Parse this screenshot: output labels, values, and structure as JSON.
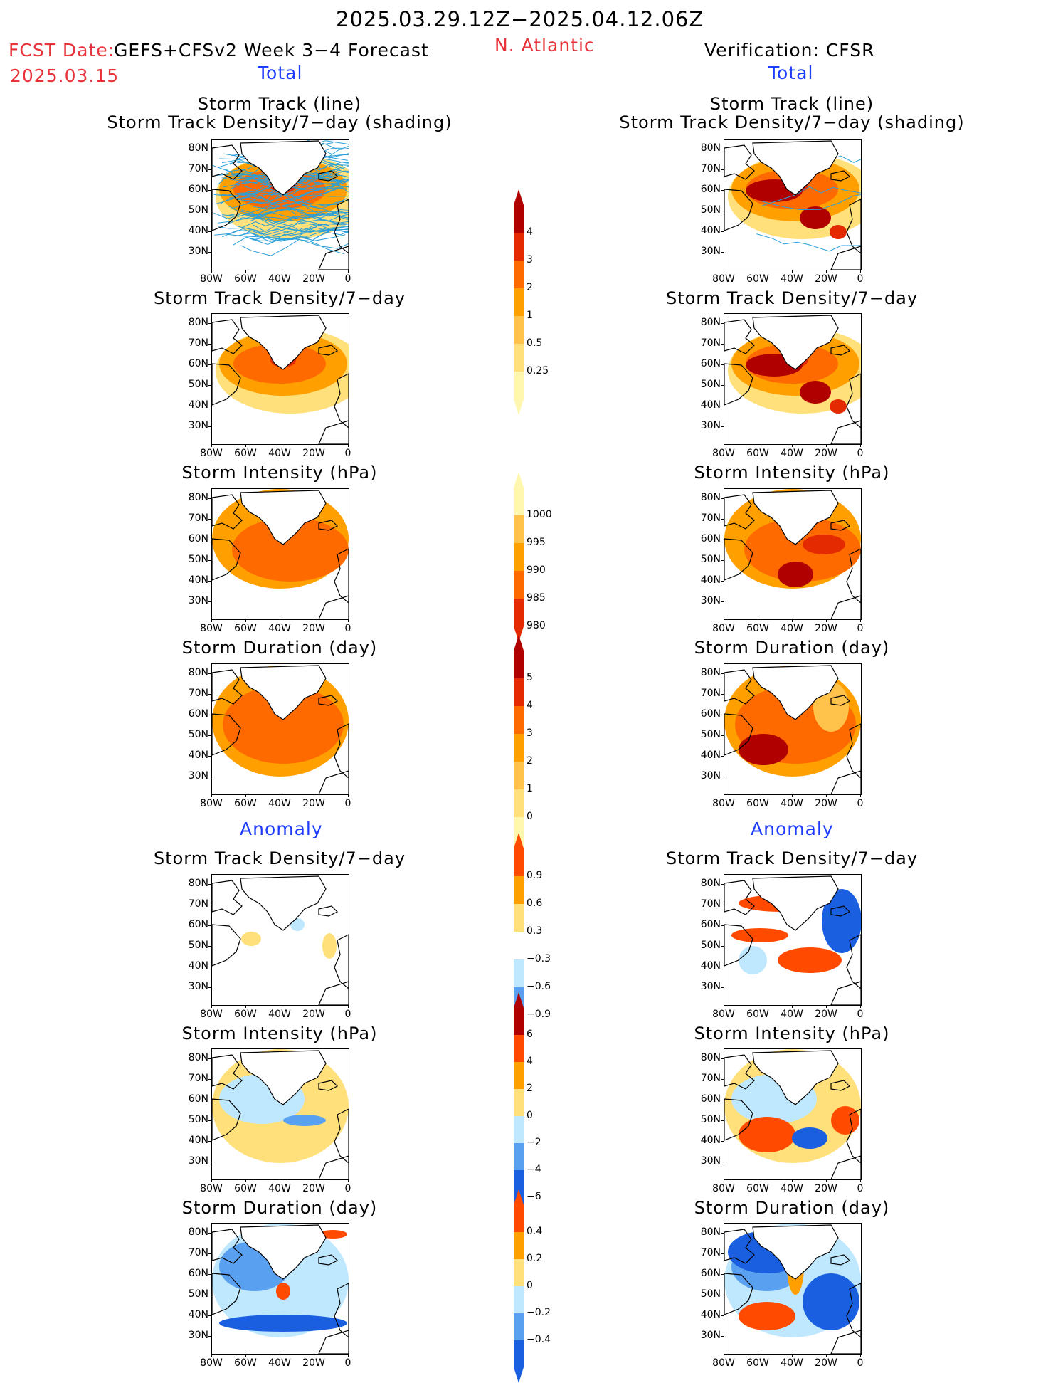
{
  "header": {
    "period": "2025.03.29.12Z−2025.04.12.06Z",
    "fcst_date_label": "FCST Date:",
    "model_title": "GEFS+CFSv2 Week 3−4 Forecast",
    "region": "N. Atlantic",
    "fcst_date_value": "2025.03.15",
    "verification": "Verification: CFSR",
    "left_total": "Total",
    "right_total": "Total",
    "left_anomaly": "Anomaly",
    "right_anomaly": "Anomaly"
  },
  "panel_titles": {
    "track_line": "Storm Track (line)",
    "track_shading": "Storm Track Density/7−day (shading)",
    "density": "Storm Track Density/7−day",
    "intensity": "Storm Intensity (hPa)",
    "duration": "Storm Duration (day)"
  },
  "axes": {
    "y_labels": [
      "80N",
      "70N",
      "60N",
      "50N",
      "40N",
      "30N"
    ],
    "x_labels": [
      "80W",
      "60W",
      "40W",
      "20W",
      "0"
    ]
  },
  "colorbars": {
    "density_total": [
      "4",
      "3",
      "2",
      "1",
      "0.5",
      "0.25"
    ],
    "intensity_total": [
      "1000",
      "995",
      "990",
      "985",
      "980"
    ],
    "duration_total": [
      "5",
      "4",
      "3",
      "2",
      "1",
      "0"
    ],
    "density_anom": [
      "0.9",
      "0.6",
      "0.3",
      "−0.3",
      "−0.6",
      "−0.9"
    ],
    "intensity_anom": [
      "6",
      "4",
      "2",
      "0",
      "−2",
      "−4",
      "−6"
    ],
    "duration_anom": [
      "0.4",
      "0.2",
      "0",
      "−0.2",
      "−0.4"
    ]
  },
  "colors": {
    "title_red": "#e8333a",
    "title_blue": "#1e3cff",
    "warm": [
      "#fff7b0",
      "#ffe07a",
      "#ffc24a",
      "#ffa000",
      "#ff6a00",
      "#e42a00",
      "#b00000"
    ],
    "anom": [
      "#1a5fe0",
      "#5aa0f0",
      "#bfe8ff",
      "#ffffff",
      "#ffe07a",
      "#ffa000",
      "#ff4a00"
    ],
    "track_line": "#2a9fd8"
  }
}
